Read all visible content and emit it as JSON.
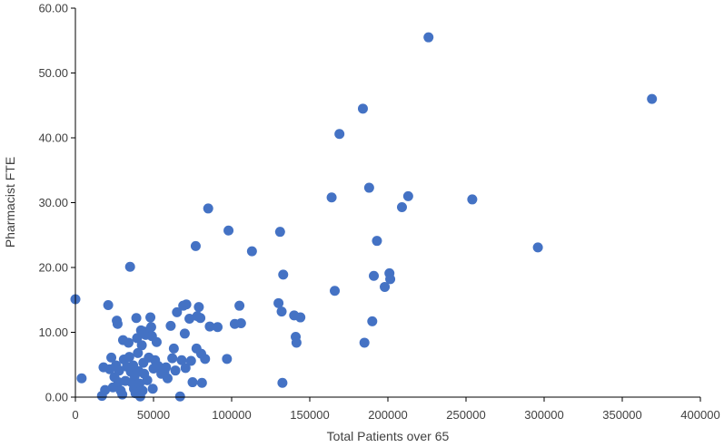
{
  "chart_data": {
    "type": "scatter",
    "title": "",
    "xlabel": "Total Patients over 65",
    "ylabel": "Pharmacist FTE",
    "xlim": [
      0,
      400000
    ],
    "ylim": [
      0,
      60
    ],
    "grid": false,
    "legend": "none",
    "marker_color": "#4472C4",
    "x_ticks": [
      "0",
      "50000",
      "100000",
      "150000",
      "200000",
      "250000",
      "300000",
      "350000",
      "400000"
    ],
    "y_ticks": [
      "0.00",
      "10.00",
      "20.00",
      "30.00",
      "40.00",
      "50.00",
      "60.00"
    ],
    "points": [
      [
        0,
        15.1
      ],
      [
        4000,
        2.9
      ],
      [
        17000,
        0.2
      ],
      [
        18000,
        4.6
      ],
      [
        19000,
        1.1
      ],
      [
        21000,
        14.2
      ],
      [
        22000,
        4.3
      ],
      [
        23000,
        6.1
      ],
      [
        24000,
        1.5
      ],
      [
        25000,
        3.1
      ],
      [
        26000,
        4.9
      ],
      [
        26500,
        11.8
      ],
      [
        27000,
        11.3
      ],
      [
        27500,
        2.3
      ],
      [
        28000,
        4.1
      ],
      [
        29000,
        1.0
      ],
      [
        30000,
        0.4
      ],
      [
        30500,
        8.8
      ],
      [
        31000,
        5.8
      ],
      [
        32000,
        2.5
      ],
      [
        33000,
        4.7
      ],
      [
        34000,
        8.4
      ],
      [
        34500,
        6.2
      ],
      [
        35000,
        20.1
      ],
      [
        35500,
        3.9
      ],
      [
        36000,
        2.3
      ],
      [
        37000,
        4.9
      ],
      [
        37500,
        1.3
      ],
      [
        38000,
        3.3
      ],
      [
        38500,
        0.6
      ],
      [
        39000,
        12.2
      ],
      [
        39500,
        9.1
      ],
      [
        40000,
        6.8
      ],
      [
        40500,
        4.0
      ],
      [
        41000,
        2.1
      ],
      [
        41500,
        0.1
      ],
      [
        42000,
        10.3
      ],
      [
        42500,
        8.0
      ],
      [
        43000,
        1.0
      ],
      [
        43500,
        5.3
      ],
      [
        44000,
        3.6
      ],
      [
        44500,
        10.1
      ],
      [
        45000,
        9.6
      ],
      [
        46000,
        2.6
      ],
      [
        47000,
        6.1
      ],
      [
        48000,
        12.3
      ],
      [
        48500,
        10.8
      ],
      [
        49000,
        9.4
      ],
      [
        49500,
        1.3
      ],
      [
        50000,
        4.4
      ],
      [
        51000,
        5.7
      ],
      [
        52000,
        8.5
      ],
      [
        53000,
        4.8
      ],
      [
        55000,
        3.6
      ],
      [
        57000,
        3.9
      ],
      [
        58000,
        4.6
      ],
      [
        59000,
        2.9
      ],
      [
        61000,
        11.0
      ],
      [
        62000,
        6.0
      ],
      [
        63000,
        7.5
      ],
      [
        64000,
        4.1
      ],
      [
        65000,
        13.1
      ],
      [
        67000,
        0.1
      ],
      [
        68000,
        5.7
      ],
      [
        69000,
        14.1
      ],
      [
        70000,
        9.8
      ],
      [
        70500,
        4.5
      ],
      [
        71000,
        14.3
      ],
      [
        73000,
        12.1
      ],
      [
        74000,
        5.6
      ],
      [
        75000,
        2.3
      ],
      [
        77000,
        23.3
      ],
      [
        77500,
        7.5
      ],
      [
        78000,
        12.5
      ],
      [
        79000,
        13.9
      ],
      [
        80000,
        12.2
      ],
      [
        80500,
        6.7
      ],
      [
        81000,
        2.2
      ],
      [
        83000,
        5.9
      ],
      [
        85000,
        29.1
      ],
      [
        86000,
        10.9
      ],
      [
        91000,
        10.8
      ],
      [
        97000,
        5.9
      ],
      [
        98000,
        25.7
      ],
      [
        102000,
        11.3
      ],
      [
        105000,
        14.1
      ],
      [
        106000,
        11.4
      ],
      [
        113000,
        22.5
      ],
      [
        130000,
        14.5
      ],
      [
        131000,
        25.5
      ],
      [
        132000,
        13.2
      ],
      [
        132500,
        2.2
      ],
      [
        133000,
        18.9
      ],
      [
        140000,
        12.6
      ],
      [
        141000,
        9.3
      ],
      [
        141500,
        8.4
      ],
      [
        144000,
        12.3
      ],
      [
        164000,
        30.8
      ],
      [
        166000,
        16.4
      ],
      [
        169000,
        40.6
      ],
      [
        184000,
        44.5
      ],
      [
        185000,
        8.4
      ],
      [
        188000,
        32.3
      ],
      [
        190000,
        11.7
      ],
      [
        191000,
        18.7
      ],
      [
        193000,
        24.1
      ],
      [
        198000,
        17.0
      ],
      [
        201000,
        19.1
      ],
      [
        201500,
        18.2
      ],
      [
        209000,
        29.3
      ],
      [
        213000,
        31.0
      ],
      [
        226000,
        55.5
      ],
      [
        254000,
        30.5
      ],
      [
        296000,
        23.1
      ],
      [
        369000,
        46.0
      ]
    ]
  }
}
